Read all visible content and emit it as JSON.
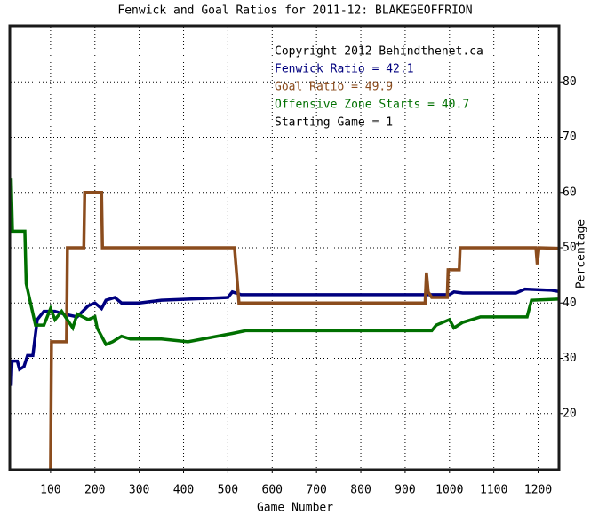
{
  "chart_data": {
    "type": "line",
    "title": "Fenwick and Goal Ratios for 2011-12: BLAKEGEOFFRION",
    "x_label": "Game Number",
    "y_label": "Percentage",
    "xlim": [
      10,
      1245
    ],
    "ylim": [
      10,
      90
    ],
    "xticks": [
      100,
      200,
      300,
      400,
      500,
      600,
      700,
      800,
      900,
      1000,
      1100,
      1200
    ],
    "yticks": [
      20,
      30,
      40,
      50,
      60,
      70,
      80
    ],
    "grid": true,
    "annotations": [
      {
        "text": "Copyright 2012 Behindthenet.ca",
        "color": "#000000"
      },
      {
        "text": "Fenwick Ratio = 42.1",
        "color": "#00007f"
      },
      {
        "text": "Goal Ratio = 49.9",
        "color": "#8b4c1d"
      },
      {
        "text": "Offensive Zone Starts = 40.7",
        "color": "#007000"
      },
      {
        "text": "Starting Game = 1",
        "color": "#000000"
      }
    ],
    "series": [
      {
        "name": "Fenwick Ratio",
        "color": "#00007f",
        "x": [
          11,
          13,
          25,
          30,
          40,
          48,
          60,
          70,
          85,
          110,
          130,
          160,
          185,
          200,
          215,
          225,
          245,
          260,
          300,
          350,
          500,
          510,
          530,
          700,
          900,
          1000,
          1010,
          1030,
          1150,
          1170,
          1230,
          1245
        ],
        "values": [
          25,
          29.5,
          29.5,
          28,
          28.5,
          30.5,
          30.5,
          37,
          38.5,
          38.5,
          38,
          37.5,
          39.5,
          40,
          39,
          40.5,
          41,
          40,
          40,
          40.5,
          41,
          42,
          41.5,
          41.5,
          41.5,
          41.5,
          42,
          41.8,
          41.8,
          42.5,
          42.3,
          42.1
        ]
      },
      {
        "name": "Goal Ratio",
        "color": "#8b4c1d",
        "x": [
          100,
          102,
          136,
          138,
          175,
          177,
          215,
          217,
          515,
          525,
          945,
          948,
          952,
          960,
          995,
          997,
          1022,
          1024,
          1195,
          1198,
          1202,
          1245
        ],
        "values": [
          10,
          33,
          33,
          50,
          50,
          60,
          60,
          50,
          50,
          40,
          40,
          45.5,
          42,
          41,
          41,
          46,
          46,
          50,
          50,
          47,
          50,
          49.9
        ]
      },
      {
        "name": "Offensive Zone Starts",
        "color": "#007000",
        "x": [
          11,
          14,
          42,
          45,
          66,
          85,
          100,
          110,
          125,
          150,
          160,
          185,
          200,
          205,
          215,
          225,
          240,
          260,
          280,
          350,
          410,
          510,
          540,
          960,
          970,
          1000,
          1010,
          1030,
          1070,
          1175,
          1185,
          1245
        ],
        "values": [
          62.5,
          53,
          53,
          43.5,
          36,
          36,
          39,
          37,
          38.5,
          35.5,
          38,
          37,
          37.5,
          35.5,
          34,
          32.5,
          33,
          34,
          33.5,
          33.5,
          33,
          34.5,
          35,
          35,
          36,
          37,
          35.5,
          36.5,
          37.5,
          37.5,
          40.5,
          40.7
        ]
      }
    ]
  }
}
